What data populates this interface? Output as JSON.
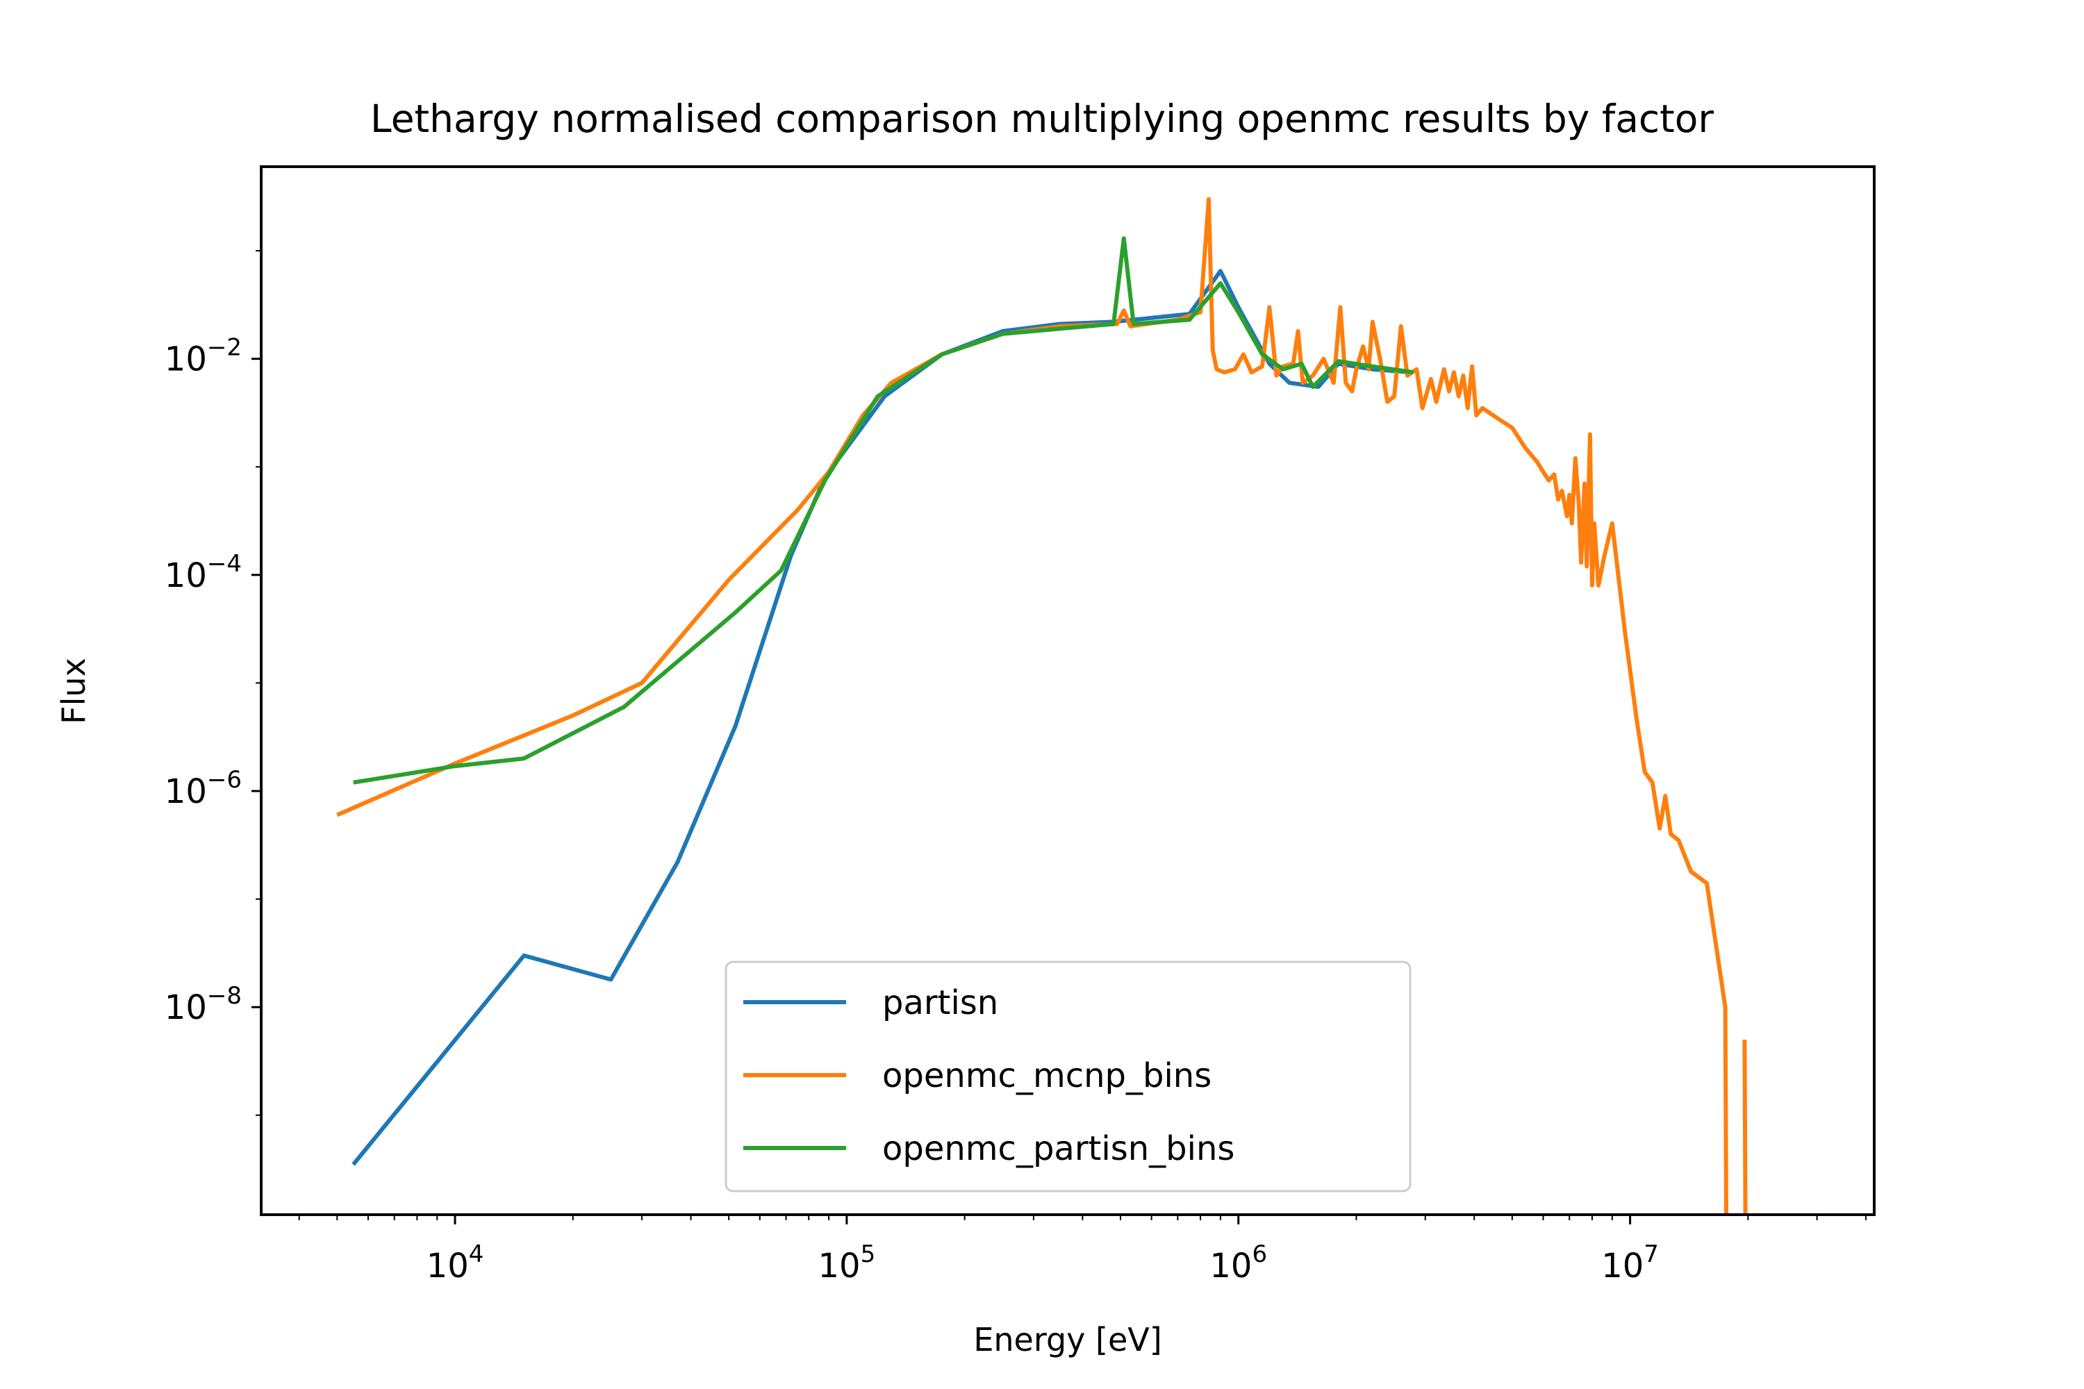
{
  "chart_data": {
    "type": "line",
    "title": "Lethargy normalised comparison multiplying openmc results by factor",
    "xlabel": "Energy [eV]",
    "ylabel": "Flux",
    "xscale": "log",
    "yscale": "log",
    "xlim": [
      3200,
      42000000
    ],
    "ylim": [
      1.2e-10,
      0.6
    ],
    "x_ticks": [
      {
        "value": 10000,
        "base": "10",
        "exp": "4"
      },
      {
        "value": 100000,
        "base": "10",
        "exp": "5"
      },
      {
        "value": 1000000,
        "base": "10",
        "exp": "6"
      },
      {
        "value": 10000000,
        "base": "10",
        "exp": "7"
      }
    ],
    "y_ticks": [
      {
        "value": 0.01,
        "base": "10",
        "exp": "−2"
      },
      {
        "value": 0.0001,
        "base": "10",
        "exp": "−4"
      },
      {
        "value": 1e-06,
        "base": "10",
        "exp": "−6"
      },
      {
        "value": 1e-08,
        "base": "10",
        "exp": "−8"
      }
    ],
    "grid": false,
    "legend_position": "lower center",
    "series": [
      {
        "name": "partisn",
        "color": "#1f77b4",
        "points": [
          [
            5500,
            3.5e-10
          ],
          [
            15000,
            3e-08
          ],
          [
            25000,
            1.8e-08
          ],
          [
            37000,
            2.2e-07
          ],
          [
            52000,
            4e-06
          ],
          [
            72000,
            0.00015
          ],
          [
            88000,
            0.0008
          ],
          [
            125000,
            0.0045
          ],
          [
            175000,
            0.011
          ],
          [
            250000,
            0.018
          ],
          [
            350000,
            0.021
          ],
          [
            480000,
            0.022
          ],
          [
            750000,
            0.026
          ],
          [
            900000,
            0.065
          ],
          [
            1000000,
            0.03
          ],
          [
            1200000,
            0.009
          ],
          [
            1350000,
            0.006
          ],
          [
            1600000,
            0.0055
          ],
          [
            1800000,
            0.009
          ],
          [
            2200000,
            0.008
          ],
          [
            2800000,
            0.0075
          ]
        ]
      },
      {
        "name": "openmc_mcnp_bins",
        "color": "#ff7f0e",
        "points": [
          [
            5000,
            6e-07
          ],
          [
            10000,
            1.8e-06
          ],
          [
            20000,
            5e-06
          ],
          [
            30000,
            1e-05
          ],
          [
            50000,
            9e-05
          ],
          [
            75000,
            0.0004
          ],
          [
            90000,
            0.0009
          ],
          [
            110000,
            0.003
          ],
          [
            130000,
            0.006
          ],
          [
            175000,
            0.011
          ],
          [
            250000,
            0.017
          ],
          [
            350000,
            0.02
          ],
          [
            490000,
            0.021
          ],
          [
            510000,
            0.028
          ],
          [
            530000,
            0.02
          ],
          [
            700000,
            0.023
          ],
          [
            800000,
            0.027
          ],
          [
            840000,
            0.3
          ],
          [
            860000,
            0.012
          ],
          [
            880000,
            0.008
          ],
          [
            920000,
            0.0075
          ],
          [
            980000,
            0.008
          ],
          [
            1030000,
            0.011
          ],
          [
            1080000,
            0.0075
          ],
          [
            1150000,
            0.0085
          ],
          [
            1200000,
            0.03
          ],
          [
            1250000,
            0.007
          ],
          [
            1300000,
            0.0085
          ],
          [
            1380000,
            0.009
          ],
          [
            1420000,
            0.018
          ],
          [
            1460000,
            0.006
          ],
          [
            1550000,
            0.007
          ],
          [
            1650000,
            0.01
          ],
          [
            1750000,
            0.006
          ],
          [
            1820000,
            0.03
          ],
          [
            1880000,
            0.006
          ],
          [
            1950000,
            0.005
          ],
          [
            2000000,
            0.008
          ],
          [
            2080000,
            0.013
          ],
          [
            2150000,
            0.008
          ],
          [
            2200000,
            0.022
          ],
          [
            2300000,
            0.01
          ],
          [
            2400000,
            0.004
          ],
          [
            2500000,
            0.0045
          ],
          [
            2600000,
            0.02
          ],
          [
            2700000,
            0.007
          ],
          [
            2850000,
            0.008
          ],
          [
            2950000,
            0.0035
          ],
          [
            3100000,
            0.0065
          ],
          [
            3200000,
            0.004
          ],
          [
            3350000,
            0.008
          ],
          [
            3450000,
            0.005
          ],
          [
            3550000,
            0.0075
          ],
          [
            3650000,
            0.0045
          ],
          [
            3750000,
            0.007
          ],
          [
            3850000,
            0.0035
          ],
          [
            3950000,
            0.0085
          ],
          [
            4050000,
            0.003
          ],
          [
            4200000,
            0.0035
          ],
          [
            4600000,
            0.0028
          ],
          [
            5000000,
            0.0023
          ],
          [
            5400000,
            0.0015
          ],
          [
            5800000,
            0.0011
          ],
          [
            6000000,
            0.0009
          ],
          [
            6200000,
            0.00075
          ],
          [
            6400000,
            0.00085
          ],
          [
            6550000,
            0.0005
          ],
          [
            6700000,
            0.0006
          ],
          [
            6900000,
            0.00035
          ],
          [
            7000000,
            0.00055
          ],
          [
            7100000,
            0.0003
          ],
          [
            7250000,
            0.0012
          ],
          [
            7400000,
            0.00045
          ],
          [
            7500000,
            0.00013
          ],
          [
            7650000,
            0.0007
          ],
          [
            7750000,
            0.00012
          ],
          [
            7900000,
            0.002
          ],
          [
            8000000,
            8e-05
          ],
          [
            8100000,
            0.0003
          ],
          [
            8300000,
            8e-05
          ],
          [
            8600000,
            0.00015
          ],
          [
            9000000,
            0.0003
          ],
          [
            9700000,
            3e-05
          ],
          [
            10400000,
            4.5e-06
          ],
          [
            10900000,
            1.5e-06
          ],
          [
            11400000,
            1.2e-06
          ],
          [
            11900000,
            4.5e-07
          ],
          [
            12300000,
            9e-07
          ],
          [
            12700000,
            4e-07
          ],
          [
            13300000,
            3.5e-07
          ],
          [
            14300000,
            1.8e-07
          ],
          [
            15700000,
            1.4e-07
          ],
          [
            17500000,
            1e-08
          ],
          [
            17600000,
            1.2e-10
          ],
          null,
          [
            19600000,
            5e-09
          ],
          [
            19700000,
            1.2e-10
          ]
        ]
      },
      {
        "name": "openmc_partisn_bins",
        "color": "#2ca02c",
        "points": [
          [
            5500,
            1.2e-06
          ],
          [
            10000,
            1.7e-06
          ],
          [
            15000,
            2e-06
          ],
          [
            27000,
            6e-06
          ],
          [
            52000,
            4.5e-05
          ],
          [
            68000,
            0.00011
          ],
          [
            88000,
            0.00075
          ],
          [
            120000,
            0.0045
          ],
          [
            175000,
            0.011
          ],
          [
            250000,
            0.017
          ],
          [
            350000,
            0.019
          ],
          [
            480000,
            0.021
          ],
          [
            510000,
            0.13
          ],
          [
            540000,
            0.021
          ],
          [
            750000,
            0.023
          ],
          [
            900000,
            0.05
          ],
          [
            1000000,
            0.027
          ],
          [
            1150000,
            0.011
          ],
          [
            1300000,
            0.008
          ],
          [
            1450000,
            0.009
          ],
          [
            1550000,
            0.0055
          ],
          [
            1800000,
            0.0095
          ],
          [
            2200000,
            0.0085
          ],
          [
            2800000,
            0.0075
          ]
        ]
      }
    ]
  }
}
